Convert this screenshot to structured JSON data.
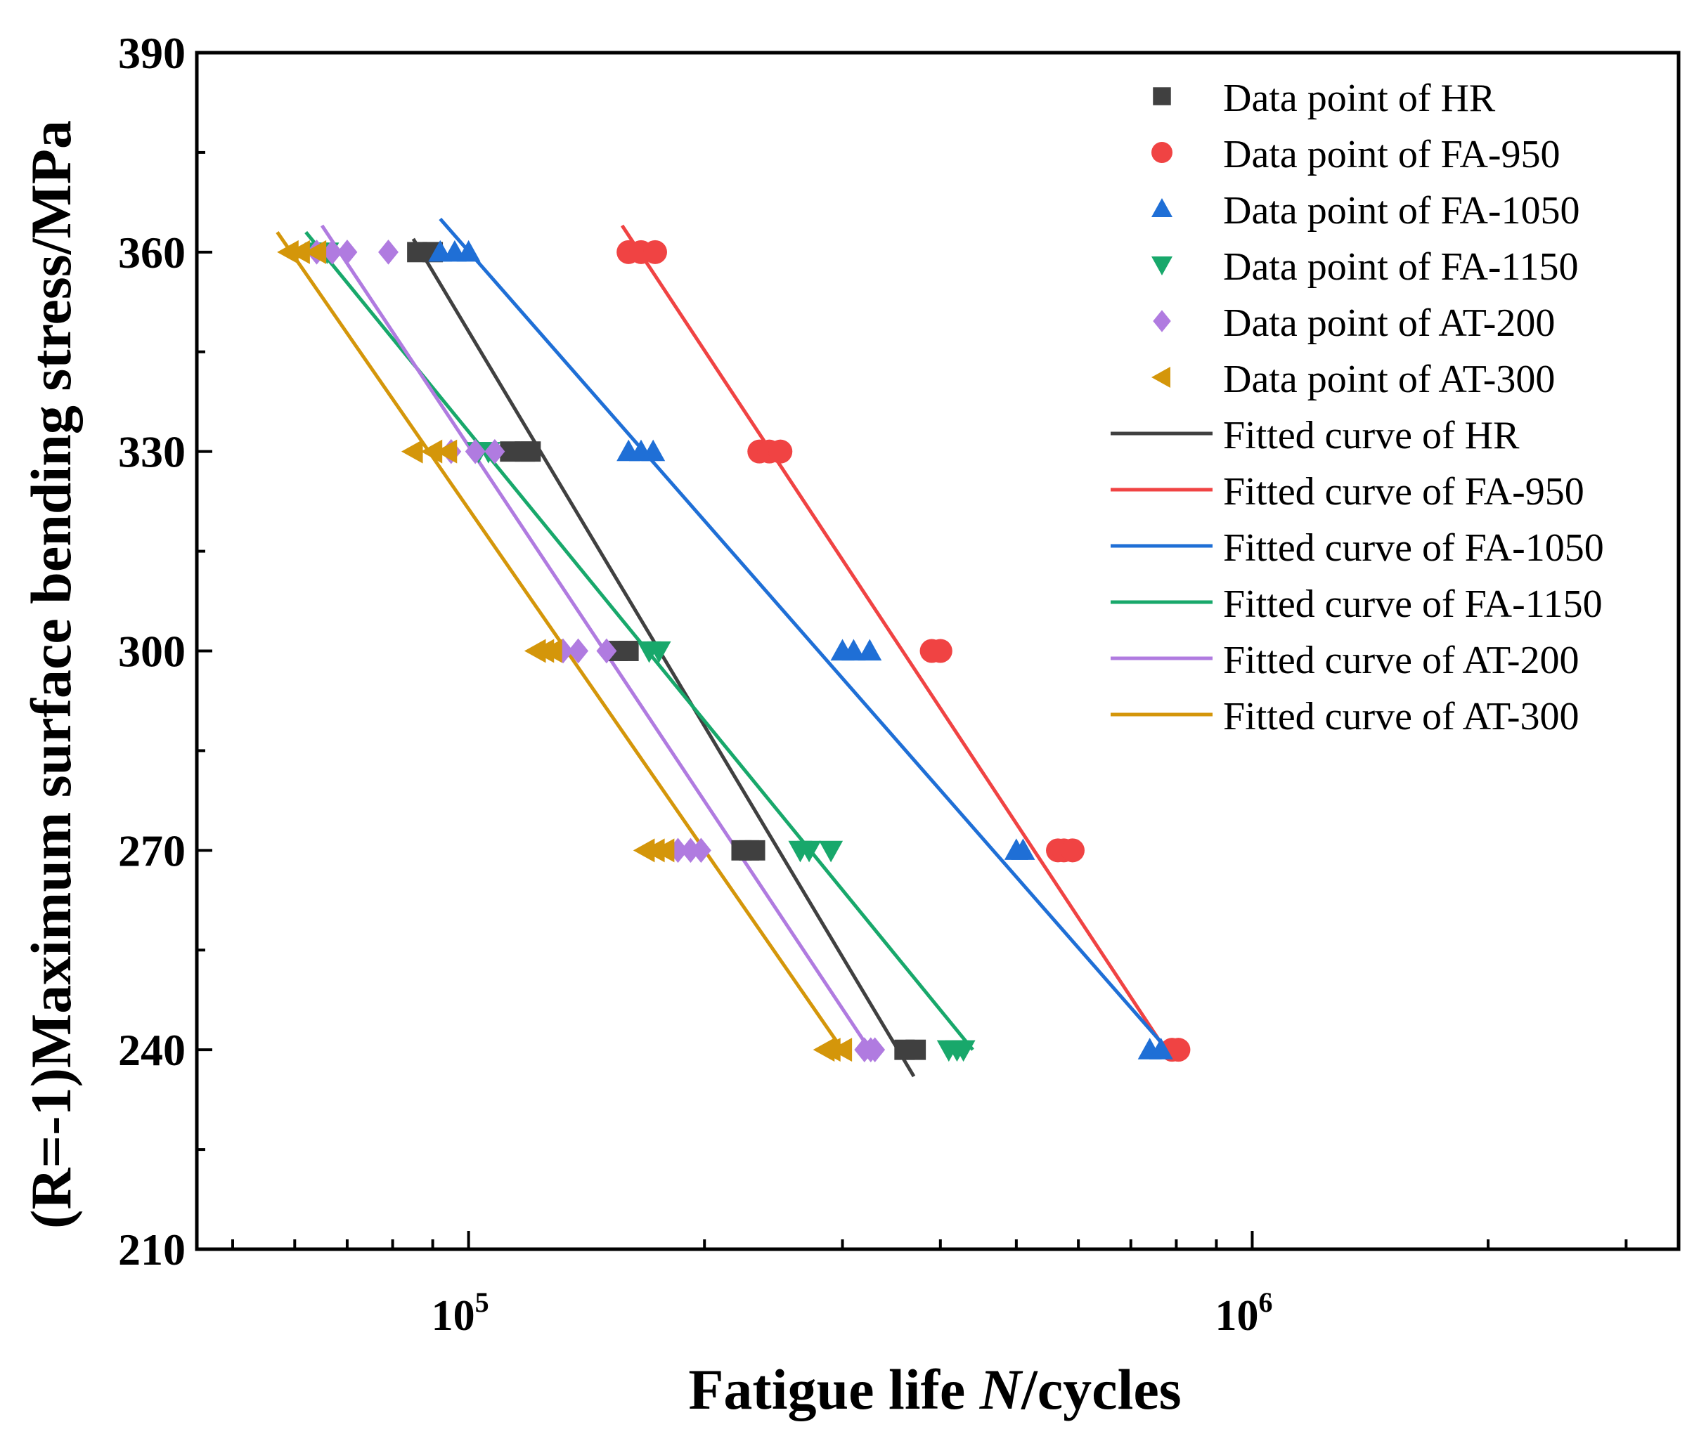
{
  "chart_data": {
    "type": "scatter",
    "title": "",
    "xlabel": {
      "prefix": "Fatigue life ",
      "var": "N",
      "suffix": "/cycles"
    },
    "ylabel": "(R=-1)Maximum surface bending stress/MPa",
    "xscale": "log",
    "xlim": [
      45000,
      3500000
    ],
    "ylim": [
      210,
      390
    ],
    "yticks": [
      210,
      240,
      270,
      300,
      330,
      360,
      390
    ],
    "ytick_labels": [
      "210",
      "240",
      "270",
      "300",
      "330",
      "360",
      "390"
    ],
    "xticks_major": [
      {
        "value": 100000,
        "base": "10",
        "exp": "5"
      },
      {
        "value": 1000000,
        "base": "10",
        "exp": "6"
      }
    ],
    "xticks_minor": [
      50000,
      60000,
      70000,
      80000,
      90000,
      200000,
      300000,
      400000,
      500000,
      600000,
      700000,
      800000,
      900000,
      2000000,
      3000000
    ],
    "legend_position": "top-right",
    "series": [
      {
        "name": "HR",
        "color": "#404040",
        "marker": "square",
        "point_label": "Data point of HR",
        "fit_label": "Fitted curve of HR",
        "points": [
          [
            86000,
            360
          ],
          [
            90000,
            360
          ],
          [
            113000,
            330
          ],
          [
            118000,
            330
          ],
          [
            120000,
            330
          ],
          [
            155000,
            300
          ],
          [
            160000,
            300
          ],
          [
            223000,
            270
          ],
          [
            228000,
            270
          ],
          [
            232000,
            270
          ],
          [
            360000,
            240
          ],
          [
            372000,
            240
          ]
        ],
        "fit": [
          [
            85000,
            362
          ],
          [
            370000,
            236
          ]
        ]
      },
      {
        "name": "FA-950",
        "color": "#f04343",
        "marker": "circle",
        "point_label": "Data point of FA-950",
        "fit_label": "Fitted curve of FA-950",
        "points": [
          [
            160000,
            360
          ],
          [
            166000,
            360
          ],
          [
            173000,
            360
          ],
          [
            235000,
            330
          ],
          [
            242000,
            330
          ],
          [
            250000,
            330
          ],
          [
            390000,
            300
          ],
          [
            400000,
            300
          ],
          [
            565000,
            270
          ],
          [
            575000,
            270
          ],
          [
            590000,
            270
          ],
          [
            790000,
            240
          ],
          [
            805000,
            240
          ]
        ],
        "fit": [
          [
            157000,
            364
          ],
          [
            775000,
            240
          ]
        ]
      },
      {
        "name": "FA-1050",
        "color": "#1f6fd6",
        "marker": "triangle-up",
        "point_label": "Data point of FA-1050",
        "fit_label": "Fitted curve of FA-1050",
        "points": [
          [
            92000,
            360
          ],
          [
            96000,
            360
          ],
          [
            100000,
            360
          ],
          [
            160000,
            330
          ],
          [
            166000,
            330
          ],
          [
            172000,
            330
          ],
          [
            300000,
            300
          ],
          [
            310000,
            300
          ],
          [
            325000,
            300
          ],
          [
            500000,
            270
          ],
          [
            510000,
            270
          ],
          [
            740000,
            240
          ],
          [
            765000,
            240
          ]
        ],
        "fit": [
          [
            92000,
            365
          ],
          [
            780000,
            240
          ]
        ]
      },
      {
        "name": "FA-1150",
        "color": "#18a86b",
        "marker": "triangle-down",
        "point_label": "Data point of FA-1150",
        "fit_label": "Fitted curve of FA-1150",
        "points": [
          [
            64000,
            360
          ],
          [
            66000,
            360
          ],
          [
            103000,
            330
          ],
          [
            106000,
            330
          ],
          [
            170000,
            300
          ],
          [
            175000,
            300
          ],
          [
            265000,
            270
          ],
          [
            272000,
            270
          ],
          [
            290000,
            270
          ],
          [
            410000,
            240
          ],
          [
            420000,
            240
          ],
          [
            428000,
            240
          ]
        ],
        "fit": [
          [
            62000,
            363
          ],
          [
            440000,
            240
          ]
        ]
      },
      {
        "name": "AT-200",
        "color": "#b07be0",
        "marker": "diamond",
        "point_label": "Data point of AT-200",
        "fit_label": "Fitted curve of AT-200",
        "points": [
          [
            64000,
            360
          ],
          [
            67000,
            360
          ],
          [
            70000,
            360
          ],
          [
            79000,
            360
          ],
          [
            95000,
            330
          ],
          [
            102000,
            330
          ],
          [
            108000,
            330
          ],
          [
            132000,
            300
          ],
          [
            138000,
            300
          ],
          [
            150000,
            300
          ],
          [
            185000,
            270
          ],
          [
            192000,
            270
          ],
          [
            198000,
            270
          ],
          [
            320000,
            240
          ],
          [
            326000,
            240
          ],
          [
            330000,
            240
          ]
        ],
        "fit": [
          [
            65000,
            364
          ],
          [
            325000,
            240
          ]
        ]
      },
      {
        "name": "AT-300",
        "color": "#d4960a",
        "marker": "triangle-left",
        "point_label": "Data point of AT-300",
        "fit_label": "Fitted curve of AT-300",
        "points": [
          [
            59000,
            360
          ],
          [
            61000,
            360
          ],
          [
            64000,
            360
          ],
          [
            85000,
            330
          ],
          [
            90000,
            330
          ],
          [
            94000,
            330
          ],
          [
            122000,
            300
          ],
          [
            125000,
            300
          ],
          [
            128000,
            300
          ],
          [
            168000,
            270
          ],
          [
            173000,
            270
          ],
          [
            178000,
            270
          ],
          [
            285000,
            240
          ],
          [
            290000,
            240
          ],
          [
            300000,
            240
          ]
        ],
        "fit": [
          [
            57000,
            363
          ],
          [
            300000,
            240
          ]
        ]
      }
    ]
  }
}
